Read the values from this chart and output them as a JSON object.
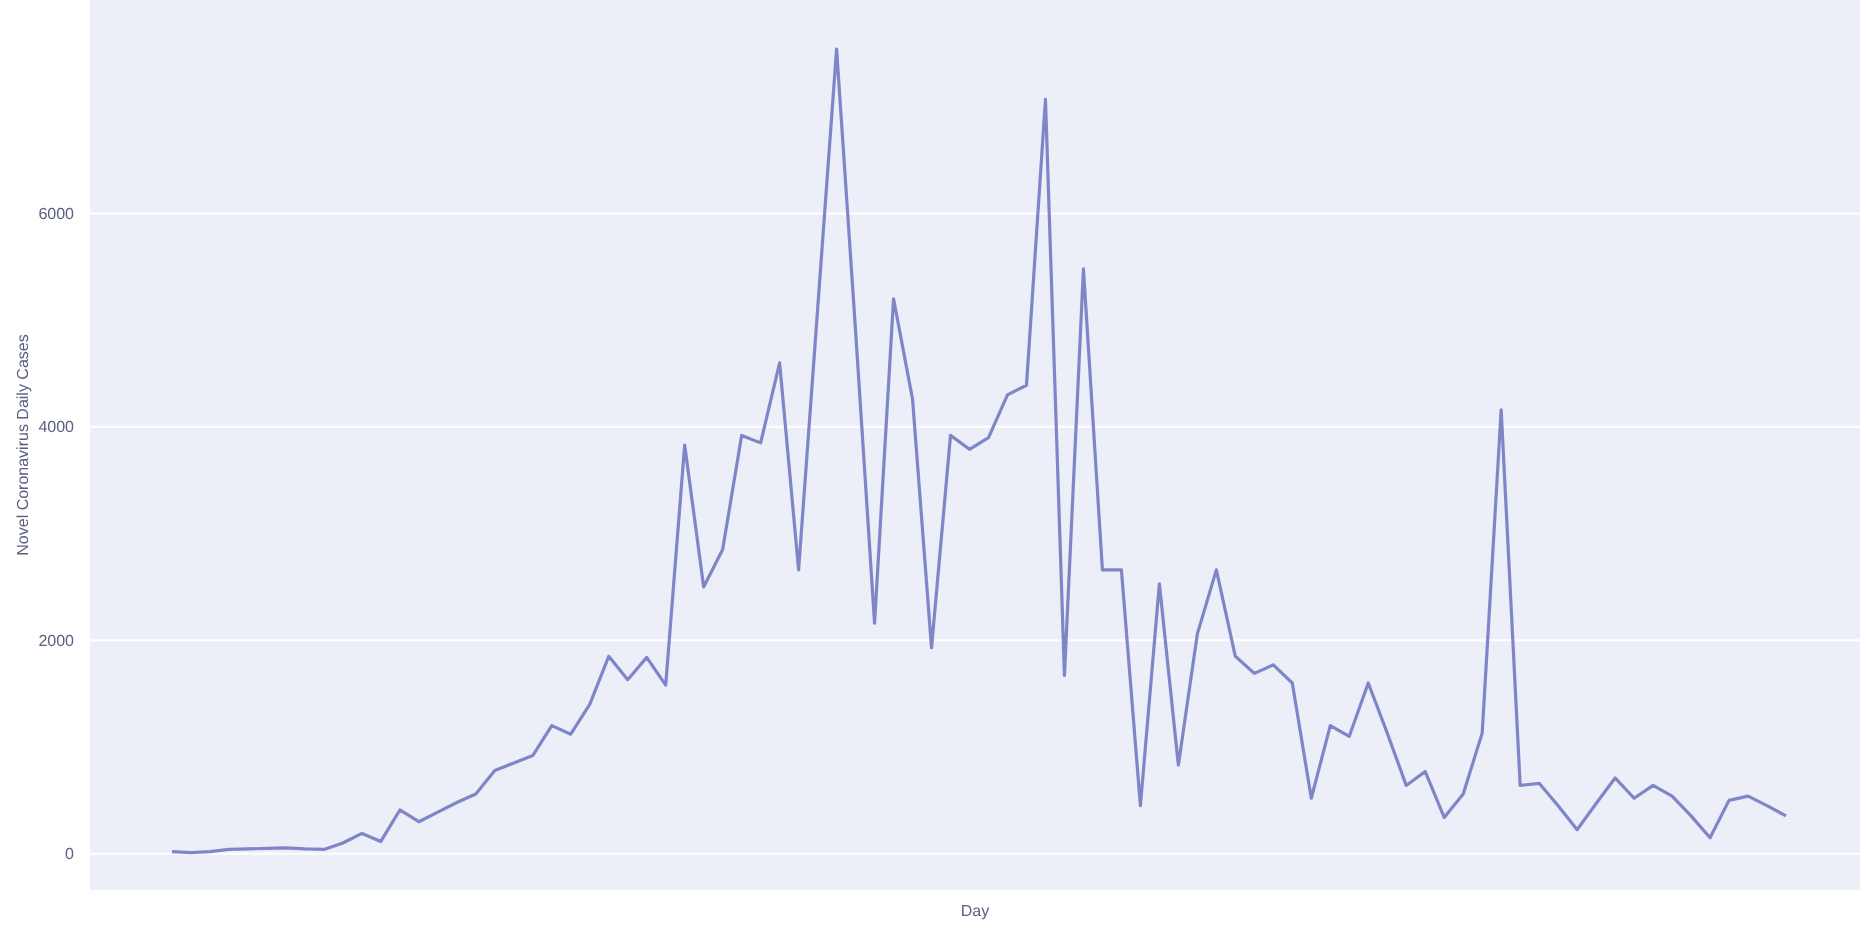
{
  "chart_data": {
    "type": "line",
    "xlabel": "Day",
    "ylabel": "Novel Coronavirus Daily Cases",
    "ylim": [
      -340,
      8000
    ],
    "yticks": [
      0,
      2000,
      4000,
      6000
    ],
    "grid": "y",
    "tick_labels": "y",
    "categories": [
      null,
      null,
      null,
      null,
      null,
      null,
      null,
      null,
      null,
      null,
      null,
      null,
      null,
      null,
      null,
      null,
      null,
      null,
      null,
      null,
      null,
      null,
      null,
      null,
      null,
      null,
      null,
      null,
      null,
      null,
      null,
      null,
      null,
      null,
      null,
      null,
      null,
      null,
      null,
      null,
      null,
      null,
      null,
      null,
      null,
      null,
      null,
      null,
      null,
      null,
      null,
      null,
      null,
      null,
      null,
      null,
      null,
      null,
      null,
      null,
      null,
      null,
      null,
      null,
      null,
      null,
      null,
      null,
      null,
      null,
      null,
      null,
      null,
      null,
      null,
      null,
      null,
      null,
      null,
      null,
      null,
      null,
      null,
      null,
      null,
      null
    ],
    "series": [
      {
        "color": "#7f86c8",
        "values": [
          20,
          10,
          20,
          40,
          45,
          50,
          55,
          45,
          40,
          100,
          190,
          115,
          410,
          300,
          390,
          480,
          560,
          780,
          850,
          920,
          1200,
          1120,
          1400,
          1850,
          1630,
          1840,
          1580,
          3830,
          2500,
          2850,
          3920,
          3850,
          4600,
          2660,
          5100,
          7540,
          4900,
          2160,
          5200,
          4260,
          1930,
          3920,
          3790,
          3900,
          4300,
          4390,
          7070,
          1670,
          5480,
          2660,
          2660,
          450,
          2530,
          830,
          2060,
          2660,
          1850,
          1690,
          1770,
          1600,
          520,
          1200,
          1100,
          1600,
          1130,
          640,
          770,
          340,
          560,
          1130,
          4160,
          640,
          660,
          450,
          225,
          470,
          710,
          520,
          640,
          540,
          355,
          150,
          500,
          540,
          450,
          355
        ]
      }
    ]
  }
}
